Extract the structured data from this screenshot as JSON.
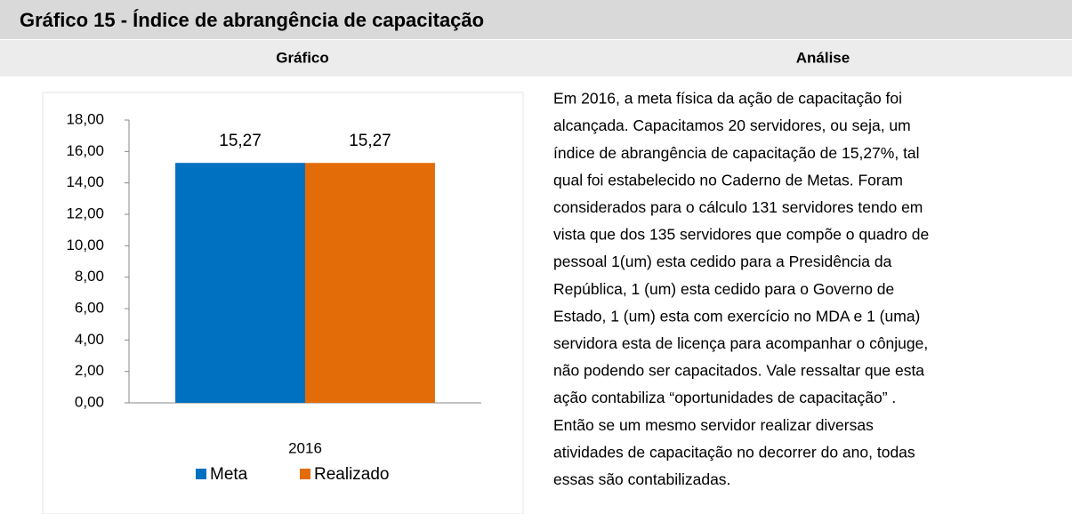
{
  "header": {
    "title": "Gráfico 15 - Índice de abrangência de capacitação"
  },
  "columns": [
    "Gráfico",
    "Análise"
  ],
  "chart_data": {
    "type": "bar",
    "categories": [
      "2016"
    ],
    "series": [
      {
        "name": "Meta",
        "color": "#0070c0",
        "values": [
          15.27
        ],
        "value_labels": [
          "15,27"
        ]
      },
      {
        "name": "Realizado",
        "color": "#e36c09",
        "values": [
          15.27
        ],
        "value_labels": [
          "15,27"
        ]
      }
    ],
    "ylim": [
      0,
      18
    ],
    "yticks": [
      {
        "value": 0,
        "label": "0,00"
      },
      {
        "value": 2,
        "label": "2,00"
      },
      {
        "value": 4,
        "label": "4,00"
      },
      {
        "value": 6,
        "label": "6,00"
      },
      {
        "value": 8,
        "label": "8,00"
      },
      {
        "value": 10,
        "label": "10,00"
      },
      {
        "value": 12,
        "label": "12,00"
      },
      {
        "value": 14,
        "label": "14,00"
      },
      {
        "value": 16,
        "label": "16,00"
      },
      {
        "value": 18,
        "label": "18,00"
      }
    ],
    "grid": false,
    "legend": "bottom"
  },
  "analysis": [
    "Em 2016,  a meta física da ação de capacitação foi",
    "alcançada. Capacitamos 20 servidores, ou seja, um",
    "índice de abrangência de capacitação de 15,27%, tal",
    "qual foi estabelecido no Caderno de Metas. Foram",
    "considerados para o cálculo 131 servidores tendo em",
    "vista que dos 135 servidores que compõe o quadro de",
    "pessoal 1(um) esta cedido para a Presidência da",
    "República, 1 (um) esta cedido para o Governo de",
    "Estado, 1 (um) esta com exercício no MDA e 1 (uma)",
    "servidora esta de licença para acompanhar o cônjuge,",
    "não podendo ser capacitados. Vale ressaltar que esta",
    "ação contabiliza “oportunidades de capacitação” .",
    "Então se um mesmo servidor realizar diversas",
    "atividades de capacitação no decorrer do ano, todas",
    "essas são contabilizadas."
  ]
}
